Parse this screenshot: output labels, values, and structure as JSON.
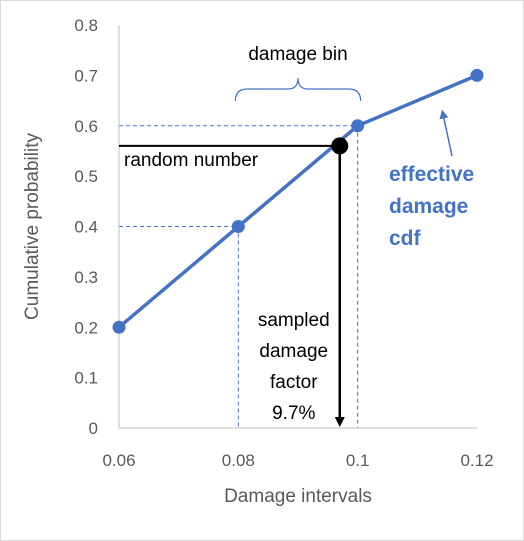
{
  "chart_data": {
    "type": "line",
    "title": "",
    "xlabel": "Damage intervals",
    "ylabel": "Cumulative probability",
    "xlim": [
      0.06,
      0.12
    ],
    "ylim": [
      0,
      0.8
    ],
    "x_ticks": [
      "0.06",
      "0.08",
      "0.1",
      "0.12"
    ],
    "y_ticks": [
      "0",
      "0.1",
      "0.2",
      "0.3",
      "0.4",
      "0.5",
      "0.6",
      "0.7",
      "0.8"
    ],
    "grid": false,
    "series": [
      {
        "name": "effective damage cdf",
        "color": "#4472C4",
        "x": [
          0.06,
          0.08,
          0.1,
          0.12
        ],
        "y": [
          0.2,
          0.4,
          0.6,
          0.7
        ]
      }
    ],
    "sampled_point": {
      "x": 0.097,
      "y": 0.56,
      "color": "#000000"
    },
    "annotations": {
      "damage_bin": "damage bin",
      "random_number": "random number",
      "sampled_lines": [
        "sampled",
        "damage",
        "factor",
        "9.7%"
      ],
      "cdf_label_lines": [
        "effective",
        "damage",
        "cdf"
      ]
    },
    "colors": {
      "series": "#4472C4",
      "axis": "#595959",
      "guide": "#4472C4",
      "marker": "#000000"
    }
  }
}
